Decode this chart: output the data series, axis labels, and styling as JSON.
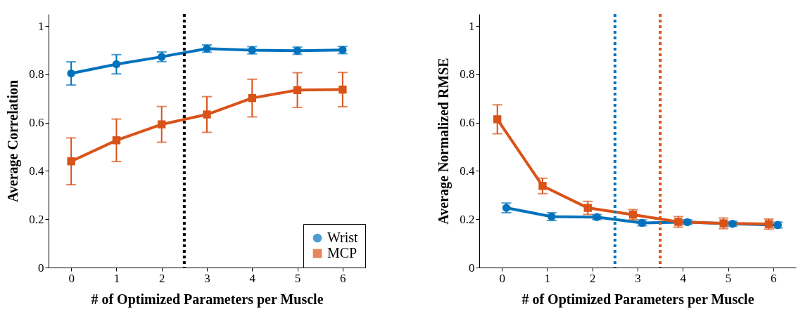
{
  "chart_data": [
    {
      "type": "line",
      "xlabel": "# of Optimized Parameters per Muscle",
      "ylabel": "Average Correlation",
      "x": [
        0,
        1,
        2,
        3,
        4,
        5,
        6
      ],
      "xlim": [
        -0.5,
        6.5
      ],
      "xticks": [
        0,
        1,
        2,
        3,
        4,
        5,
        6
      ],
      "ylim": [
        0,
        1.05
      ],
      "yticks": [
        0,
        0.2,
        0.4,
        0.6,
        0.8,
        1
      ],
      "grid": false,
      "legend": "bottom right",
      "line_style": "solid",
      "series": [
        {
          "name": "Wrist",
          "color": "#0072bd",
          "marker": "circle",
          "values": [
            0.804,
            0.842,
            0.873,
            0.907,
            0.9,
            0.898,
            0.901
          ],
          "errors": [
            0.048,
            0.04,
            0.02,
            0.015,
            0.015,
            0.015,
            0.015
          ]
        },
        {
          "name": "MCP",
          "color": "#d95319",
          "marker": "square",
          "values": [
            0.44,
            0.527,
            0.593,
            0.634,
            0.702,
            0.735,
            0.737
          ],
          "errors": [
            0.097,
            0.088,
            0.074,
            0.074,
            0.078,
            0.072,
            0.071
          ]
        }
      ],
      "ref_lines": [
        {
          "axis": "x",
          "value": 2.5,
          "color": "#000000",
          "line_style": "dotted"
        }
      ]
    },
    {
      "type": "line",
      "xlabel": "# of Optimized Parameters per Muscle",
      "ylabel": "Average Normalized RMSE",
      "xlim": [
        -0.5,
        6.5
      ],
      "xticks": [
        0,
        1,
        2,
        3,
        4,
        5,
        6
      ],
      "ylim": [
        0,
        1.05
      ],
      "yticks": [
        0,
        0.2,
        0.4,
        0.6,
        0.8,
        1
      ],
      "grid": false,
      "line_style": "solid",
      "series": [
        {
          "color": "#0072bd",
          "marker": "circle",
          "x": [
            0.1,
            1.1,
            2.1,
            3.1,
            4.1,
            5.1,
            6.1
          ],
          "values": [
            0.247,
            0.211,
            0.209,
            0.185,
            0.188,
            0.181,
            0.176
          ],
          "errors": [
            0.02,
            0.016,
            0.01,
            0.012,
            0.01,
            0.01,
            0.012
          ]
        },
        {
          "color": "#d95319",
          "marker": "square",
          "x": [
            -0.1,
            0.9,
            1.9,
            2.9,
            3.9,
            4.9,
            5.9
          ],
          "values": [
            0.614,
            0.338,
            0.247,
            0.219,
            0.189,
            0.183,
            0.18
          ],
          "errors": [
            0.06,
            0.032,
            0.027,
            0.021,
            0.022,
            0.022,
            0.021
          ]
        }
      ],
      "ref_lines": [
        {
          "axis": "x",
          "value": 2.5,
          "color": "#0072bd",
          "line_style": "dotted"
        },
        {
          "axis": "x",
          "value": 3.5,
          "color": "#d95319",
          "line_style": "dotted"
        }
      ]
    }
  ]
}
